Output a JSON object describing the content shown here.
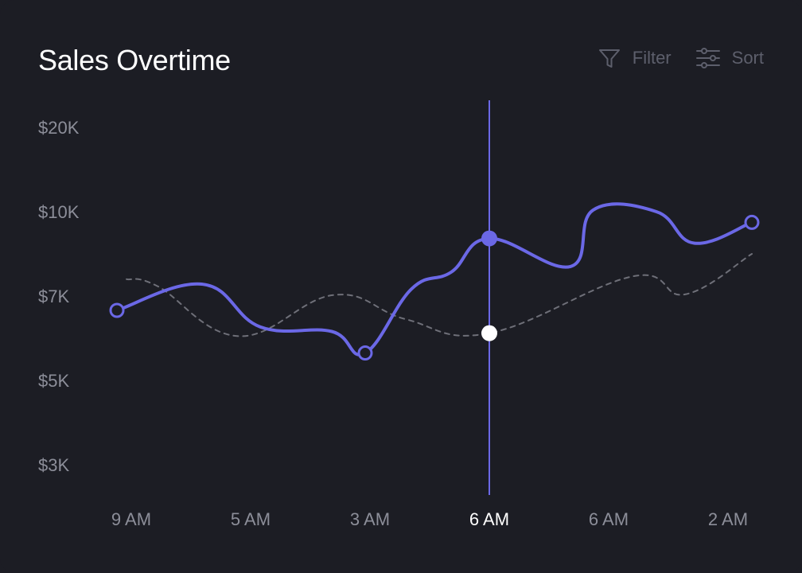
{
  "header": {
    "title": "Sales Overtime",
    "filter_label": "Filter",
    "sort_label": "Sort",
    "filter_icon": "funnel-icon",
    "sort_icon": "sliders-icon"
  },
  "colors": {
    "background": "#1c1d24",
    "primary_series": "#6b68e6",
    "secondary_series": "#6e6f78",
    "cursor": "#6b68e6",
    "tick_text": "#8c8e99",
    "active_tick_text": "#ffffff"
  },
  "chart_data": {
    "type": "line",
    "title": "Sales Overtime",
    "xlabel": "",
    "ylabel": "",
    "y_ticks": [
      {
        "label": "$20K",
        "value": 20
      },
      {
        "label": "$10K",
        "value": 10
      },
      {
        "label": "$7K",
        "value": 7
      },
      {
        "label": "$5K",
        "value": 5
      },
      {
        "label": "$3K",
        "value": 3
      }
    ],
    "x_ticks": [
      {
        "label": "9 AM",
        "x": 1
      },
      {
        "label": "5 AM",
        "x": 2
      },
      {
        "label": "3 AM",
        "x": 3
      },
      {
        "label": "6 AM",
        "x": 4
      },
      {
        "label": "6 AM",
        "x": 5
      },
      {
        "label": "2 AM",
        "x": 6
      }
    ],
    "active_x_index": 3,
    "xlim": [
      0.88,
      6.2
    ],
    "grid": false,
    "legend": "none",
    "series": [
      {
        "style": "solid",
        "points": [
          {
            "x": 0.88,
            "y": 6.66
          },
          {
            "x": 1.6,
            "y": 7.42
          },
          {
            "x": 2.08,
            "y": 6.27
          },
          {
            "x": 2.68,
            "y": 6.16
          },
          {
            "x": 2.96,
            "y": 5.65
          },
          {
            "x": 3.35,
            "y": 7.26
          },
          {
            "x": 3.68,
            "y": 7.85
          },
          {
            "x": 4.0,
            "y": 9.05
          },
          {
            "x": 4.68,
            "y": 8.05
          },
          {
            "x": 4.87,
            "y": 10.2
          },
          {
            "x": 5.4,
            "y": 10.0
          },
          {
            "x": 5.72,
            "y": 8.88
          },
          {
            "x": 6.2,
            "y": 9.62
          }
        ],
        "markers": [
          {
            "point_index": 0,
            "style": "hollow"
          },
          {
            "point_index": 4,
            "style": "hollow"
          },
          {
            "point_index": 7,
            "style": "filled"
          },
          {
            "point_index": 12,
            "style": "hollow"
          }
        ]
      },
      {
        "style": "dashed",
        "points": [
          {
            "x": 0.96,
            "y": 7.6
          },
          {
            "x": 1.22,
            "y": 7.35
          },
          {
            "x": 1.9,
            "y": 6.05
          },
          {
            "x": 2.7,
            "y": 7.04
          },
          {
            "x": 3.3,
            "y": 6.45
          },
          {
            "x": 4.0,
            "y": 6.12
          },
          {
            "x": 5.2,
            "y": 7.7
          },
          {
            "x": 5.64,
            "y": 7.06
          },
          {
            "x": 6.2,
            "y": 8.5
          }
        ],
        "markers": [
          {
            "point_index": 5,
            "style": "white"
          }
        ]
      }
    ],
    "cursor_x": 4
  }
}
